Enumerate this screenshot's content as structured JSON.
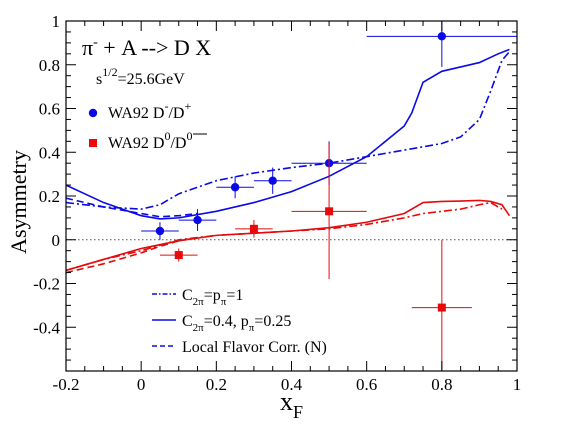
{
  "chart_data": {
    "type": "scatter",
    "title": "",
    "xlabel": "x",
    "xlabel_sub": "F",
    "ylabel": "Asymmetry",
    "xlim": [
      -0.2,
      1.0
    ],
    "ylim": [
      -0.6,
      1.0
    ],
    "grid": false,
    "legend_position": "center-left (upper markers) and bottom-center (curves)",
    "x_tick_labels": [
      "-0.2",
      "0",
      "0.2",
      "0.4",
      "0.6",
      "0.8",
      "1"
    ],
    "y_tick_labels": [
      "-0.4",
      "-0.2",
      "0",
      "0.2",
      "0.4",
      "0.6",
      "0.8",
      "1"
    ],
    "annotations": {
      "reaction": "π + A --> D X",
      "reaction_superscript": "-",
      "energy": "s",
      "energy_sup": "1/2",
      "energy_value": "=25.6GeV"
    },
    "series": [
      {
        "name": "WA92 D⁻/D⁺",
        "kind": "points",
        "marker": "circle",
        "color": "#0a0ae6",
        "x": [
          0.05,
          0.15,
          0.25,
          0.35,
          0.5,
          0.8
        ],
        "y": [
          0.04,
          0.09,
          0.24,
          0.27,
          0.35,
          0.93
        ],
        "xerr": [
          0.05,
          0.05,
          0.05,
          0.05,
          0.1,
          0.2
        ],
        "yerr": [
          0.04,
          0.05,
          0.05,
          0.06,
          0.1,
          0.14
        ]
      },
      {
        "name": "WA92 D⁰/D̄⁰",
        "kind": "points",
        "marker": "square",
        "color": "#e60a0a",
        "x": [
          0.1,
          0.3,
          0.5,
          0.8
        ],
        "y": [
          -0.07,
          0.05,
          0.13,
          -0.31
        ],
        "xerr": [
          0.05,
          0.05,
          0.1,
          0.08
        ],
        "yerr": [
          0.03,
          0.04,
          0.31,
          0.31
        ]
      },
      {
        "name": "C2π=pπ=1",
        "kind": "line",
        "style": "dashdot",
        "color": "#0a0ae6",
        "x": [
          -0.2,
          -0.1,
          0.0,
          0.05,
          0.1,
          0.2,
          0.3,
          0.4,
          0.5,
          0.6,
          0.7,
          0.8,
          0.85,
          0.9,
          0.93,
          0.96,
          0.98
        ],
        "y": [
          0.17,
          0.15,
          0.14,
          0.16,
          0.21,
          0.27,
          0.305,
          0.33,
          0.35,
          0.38,
          0.41,
          0.44,
          0.47,
          0.55,
          0.68,
          0.82,
          0.86
        ]
      },
      {
        "name": "C2π=0.4, pπ=0.25",
        "kind": "line",
        "style": "solid",
        "color": "#0a0ae6",
        "x": [
          -0.2,
          -0.1,
          0.0,
          0.05,
          0.1,
          0.2,
          0.3,
          0.4,
          0.5,
          0.6,
          0.7,
          0.72,
          0.75,
          0.8,
          0.85,
          0.9,
          0.95,
          0.98
        ],
        "y": [
          0.25,
          0.17,
          0.11,
          0.095,
          0.1,
          0.13,
          0.17,
          0.22,
          0.29,
          0.38,
          0.52,
          0.58,
          0.72,
          0.77,
          0.79,
          0.81,
          0.85,
          0.87
        ]
      },
      {
        "name": "Local Flavor Corr. (N)",
        "kind": "line",
        "style": "dashed",
        "color": "#0a0ae6",
        "x": [
          -0.2,
          -0.1,
          0.0,
          0.05,
          0.1,
          0.15
        ],
        "y": [
          0.19,
          0.15,
          0.12,
          0.105,
          0.11,
          0.12
        ]
      },
      {
        "name": "",
        "kind": "line",
        "style": "solid",
        "color": "#e60a0a",
        "x": [
          -0.2,
          -0.1,
          0.0,
          0.1,
          0.2,
          0.3,
          0.4,
          0.5,
          0.6,
          0.7,
          0.75,
          0.8,
          0.85,
          0.9,
          0.93,
          0.96,
          0.98
        ],
        "y": [
          -0.14,
          -0.09,
          -0.04,
          -0.005,
          0.02,
          0.03,
          0.04,
          0.055,
          0.08,
          0.12,
          0.17,
          0.175,
          0.177,
          0.18,
          0.175,
          0.16,
          0.11
        ]
      },
      {
        "name": "",
        "kind": "line",
        "style": "dashdot",
        "color": "#e60a0a",
        "x": [
          -0.2,
          -0.1,
          0.0,
          0.1,
          0.2,
          0.3,
          0.4,
          0.5,
          0.6,
          0.7,
          0.75,
          0.8,
          0.85,
          0.9,
          0.93,
          0.96
        ],
        "y": [
          -0.14,
          -0.09,
          -0.05,
          0.0,
          0.02,
          0.03,
          0.04,
          0.05,
          0.07,
          0.1,
          0.12,
          0.13,
          0.14,
          0.16,
          0.17,
          0.14
        ]
      },
      {
        "name": "",
        "kind": "line",
        "style": "dashed",
        "color": "#e60a0a",
        "x": [
          -0.2,
          -0.1,
          0.0,
          0.05,
          0.1,
          0.15
        ],
        "y": [
          -0.15,
          -0.11,
          -0.06,
          -0.03,
          -0.005,
          0.01
        ]
      },
      {
        "name": "",
        "kind": "line",
        "style": "dotted",
        "color": "#555555",
        "x": [
          -0.2,
          1.0
        ],
        "y": [
          0.0,
          0.0
        ]
      }
    ],
    "legend_top": [
      {
        "label": "WA92 D",
        "sup": "-",
        "mid": "/D",
        "sup2": "+",
        "marker": "circle",
        "color": "#0a0ae6"
      },
      {
        "label": "WA92 D",
        "sup": "0",
        "mid": "/D",
        "sup2": "0",
        "marker": "square",
        "color": "#e60a0a",
        "bar": true
      }
    ],
    "legend_bottom": [
      {
        "style": "dashdot",
        "color": "#0a0ae6",
        "text": "C",
        "sub": "2π",
        "rest": "=p",
        "sub2": "π",
        "rest2": "=1"
      },
      {
        "style": "solid",
        "color": "#0a0ae6",
        "text": "C",
        "sub": "2π",
        "rest": "=0.4, p",
        "sub2": "π",
        "rest2": "=0.25"
      },
      {
        "style": "dashed",
        "color": "#0a0ae6",
        "text": "Local Flavor Corr. (N)",
        "sub": "",
        "rest": "",
        "sub2": "",
        "rest2": ""
      }
    ]
  }
}
